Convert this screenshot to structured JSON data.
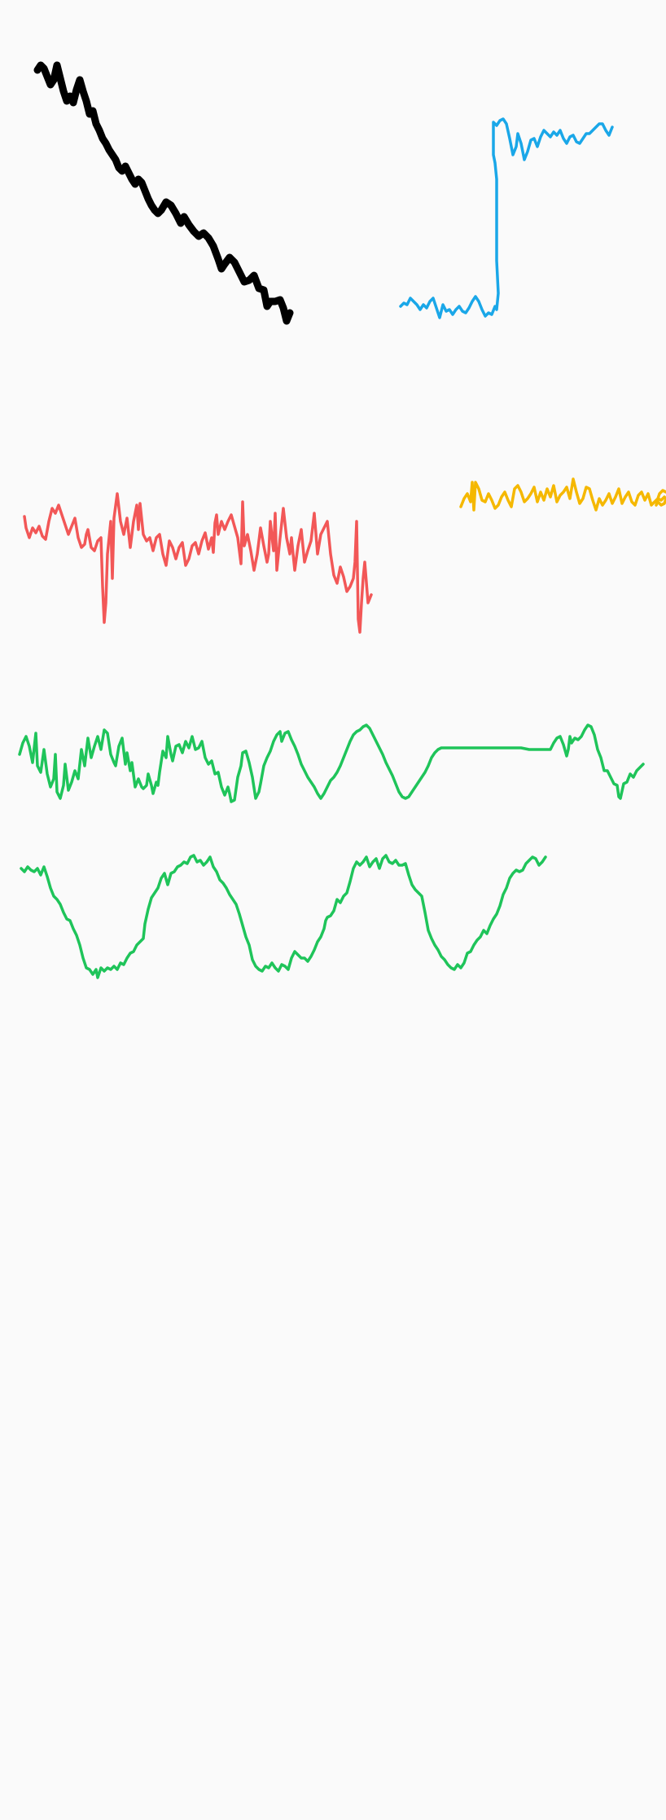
{
  "strokes": [
    {
      "name": "black-stroke",
      "color": "#000000"
    },
    {
      "name": "blue-stroke",
      "color": "#1aa7e8"
    },
    {
      "name": "red-stroke",
      "color": "#f25757"
    },
    {
      "name": "yellow-stroke",
      "color": "#f5b800"
    },
    {
      "name": "green-stroke-upper",
      "color": "#1fc45a"
    },
    {
      "name": "green-stroke-lower",
      "color": "#1fc45a"
    }
  ]
}
